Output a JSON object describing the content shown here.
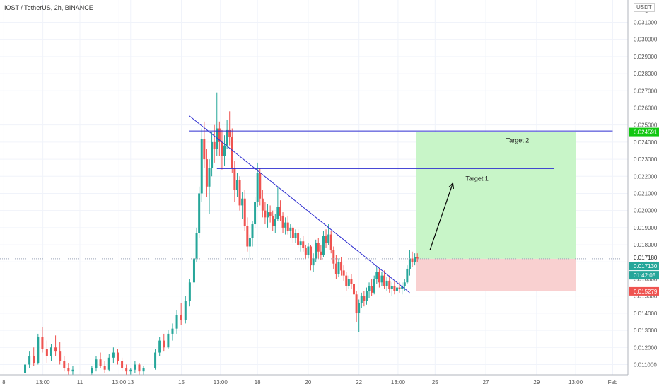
{
  "header": {
    "title": "IOST / TetherUS, 2h, BINANCE",
    "currency": "USDT"
  },
  "colors": {
    "up": "#26a69a",
    "down": "#ef5350",
    "trendline": "#2f2fd0",
    "target_zone": "#c8f5c8",
    "stop_zone": "#f9d0d0",
    "target_price_bg": "#12c712",
    "last_price_bg": "#26a69a",
    "stop_price_bg": "#ef5350"
  },
  "chart_data": {
    "type": "candlestick",
    "ylim": [
      0.0104,
      0.0323
    ],
    "y_ticks": [
      0.011,
      0.012,
      0.013,
      0.014,
      0.015,
      0.016,
      0.017,
      0.018,
      0.019,
      0.02,
      0.021,
      0.022,
      0.023,
      0.024,
      0.025,
      0.026,
      0.027,
      0.028,
      0.029,
      0.03,
      0.031
    ],
    "y_tick_labels": [
      "0.011000",
      "0.012000",
      "0.013000",
      "0.014000",
      "0.015000",
      "0.016000",
      "0.017000",
      "0.018000",
      "0.019000",
      "0.020000",
      "0.021000",
      "0.022000",
      "0.023000",
      "0.024000",
      "0.025000",
      "0.026000",
      "0.027000",
      "0.028000",
      "0.029000",
      "0.030000",
      "0.031000"
    ],
    "y_top_label": "0",
    "xlim": [
      7.85,
      32.6
    ],
    "x_ticks": [
      {
        "x": 8.0,
        "label": "8"
      },
      {
        "x": 9.54,
        "label": "13:00"
      },
      {
        "x": 11.0,
        "label": "11"
      },
      {
        "x": 12.54,
        "label": "13:00"
      },
      {
        "x": 13.0,
        "label": "13"
      },
      {
        "x": 15.0,
        "label": "15"
      },
      {
        "x": 16.54,
        "label": "13:00"
      },
      {
        "x": 18.0,
        "label": "18"
      },
      {
        "x": 20.0,
        "label": "20"
      },
      {
        "x": 22.0,
        "label": "22"
      },
      {
        "x": 23.54,
        "label": "13:00"
      },
      {
        "x": 25.0,
        "label": "25"
      },
      {
        "x": 27.0,
        "label": "27"
      },
      {
        "x": 29.0,
        "label": "29"
      },
      {
        "x": 30.54,
        "label": "13:00"
      },
      {
        "x": 32.0,
        "label": "Feb"
      }
    ],
    "ohlc": [
      [
        8.84,
        0.0105,
        0.0112,
        0.0104,
        0.011
      ],
      [
        9.01,
        0.011,
        0.0118,
        0.0108,
        0.0115
      ],
      [
        9.18,
        0.0115,
        0.012,
        0.0109,
        0.0111
      ],
      [
        9.35,
        0.0111,
        0.0128,
        0.011,
        0.0126
      ],
      [
        9.52,
        0.0126,
        0.0132,
        0.0117,
        0.0119
      ],
      [
        9.7,
        0.0119,
        0.0124,
        0.0111,
        0.0115
      ],
      [
        9.87,
        0.0115,
        0.0122,
        0.0112,
        0.012
      ],
      [
        10.04,
        0.012,
        0.0127,
        0.0115,
        0.0118
      ],
      [
        10.21,
        0.0118,
        0.0123,
        0.011,
        0.0112
      ],
      [
        10.38,
        0.0112,
        0.0115,
        0.0106,
        0.0108
      ],
      [
        10.55,
        0.0108,
        0.0111,
        0.0104,
        0.0106
      ],
      [
        10.72,
        0.0106,
        0.0109,
        0.0104,
        0.0107
      ],
      [
        11.47,
        0.0105,
        0.0109,
        0.0104,
        0.0108
      ],
      [
        11.64,
        0.0108,
        0.0115,
        0.0106,
        0.0113
      ],
      [
        11.81,
        0.0113,
        0.0117,
        0.0108,
        0.0109
      ],
      [
        11.98,
        0.0109,
        0.0112,
        0.0105,
        0.0107
      ],
      [
        12.15,
        0.0107,
        0.0116,
        0.0106,
        0.0114
      ],
      [
        12.32,
        0.0114,
        0.012,
        0.0111,
        0.0117
      ],
      [
        12.49,
        0.0117,
        0.0119,
        0.011,
        0.0112
      ],
      [
        12.66,
        0.0112,
        0.0114,
        0.0106,
        0.0108
      ],
      [
        12.83,
        0.0108,
        0.011,
        0.0104,
        0.0106
      ],
      [
        13.0,
        0.0106,
        0.0108,
        0.0104,
        0.0107
      ],
      [
        13.17,
        0.0107,
        0.0112,
        0.0105,
        0.011
      ],
      [
        13.34,
        0.011,
        0.0111,
        0.0104,
        0.0106
      ],
      [
        13.51,
        0.0106,
        0.0109,
        0.0104,
        0.0108
      ],
      [
        13.97,
        0.0108,
        0.0119,
        0.0107,
        0.0117
      ],
      [
        14.14,
        0.0117,
        0.0126,
        0.0115,
        0.0124
      ],
      [
        14.31,
        0.0124,
        0.0128,
        0.0118,
        0.012
      ],
      [
        14.48,
        0.012,
        0.013,
        0.0119,
        0.0128
      ],
      [
        14.65,
        0.0128,
        0.0134,
        0.0124,
        0.0131
      ],
      [
        14.82,
        0.0131,
        0.0142,
        0.0128,
        0.0139
      ],
      [
        14.99,
        0.0139,
        0.0146,
        0.0133,
        0.0136
      ],
      [
        15.16,
        0.0136,
        0.015,
        0.0134,
        0.0147
      ],
      [
        15.33,
        0.0147,
        0.016,
        0.0144,
        0.0158
      ],
      [
        15.5,
        0.0158,
        0.0175,
        0.0155,
        0.0172
      ],
      [
        15.6,
        0.0172,
        0.019,
        0.017,
        0.0187
      ],
      [
        15.7,
        0.0187,
        0.0214,
        0.0184,
        0.021
      ],
      [
        15.8,
        0.021,
        0.0248,
        0.0205,
        0.0242
      ],
      [
        15.9,
        0.0242,
        0.0252,
        0.0225,
        0.023
      ],
      [
        16.0,
        0.023,
        0.0236,
        0.0208,
        0.0214
      ],
      [
        16.1,
        0.0214,
        0.023,
        0.0198,
        0.0225
      ],
      [
        16.2,
        0.0225,
        0.0246,
        0.022,
        0.024
      ],
      [
        16.3,
        0.024,
        0.025,
        0.0228,
        0.0236
      ],
      [
        16.4,
        0.0236,
        0.0269,
        0.0232,
        0.0248
      ],
      [
        16.5,
        0.0248,
        0.0252,
        0.0232,
        0.024
      ],
      [
        16.6,
        0.024,
        0.0247,
        0.0224,
        0.0232
      ],
      [
        16.7,
        0.0232,
        0.0244,
        0.0226,
        0.0238
      ],
      [
        16.8,
        0.0238,
        0.0253,
        0.0236,
        0.0247
      ],
      [
        16.9,
        0.0247,
        0.0258,
        0.0238,
        0.0243
      ],
      [
        17.0,
        0.0243,
        0.0248,
        0.0222,
        0.0225
      ],
      [
        17.1,
        0.0225,
        0.0229,
        0.0205,
        0.0212
      ],
      [
        17.2,
        0.0212,
        0.0222,
        0.0208,
        0.0218
      ],
      [
        17.3,
        0.0218,
        0.022,
        0.02,
        0.0203
      ],
      [
        17.4,
        0.0203,
        0.0211,
        0.0195,
        0.0207
      ],
      [
        17.5,
        0.0207,
        0.0212,
        0.0188,
        0.0191
      ],
      [
        17.6,
        0.0191,
        0.0196,
        0.0176,
        0.0179
      ],
      [
        17.7,
        0.0179,
        0.0186,
        0.0172,
        0.0184
      ],
      [
        17.8,
        0.0184,
        0.0194,
        0.0179,
        0.0192
      ],
      [
        17.9,
        0.0192,
        0.0208,
        0.019,
        0.0205
      ],
      [
        18.0,
        0.0205,
        0.0228,
        0.0202,
        0.0222
      ],
      [
        18.1,
        0.0222,
        0.0225,
        0.0203,
        0.0207
      ],
      [
        18.2,
        0.0207,
        0.0212,
        0.0196,
        0.02
      ],
      [
        18.3,
        0.02,
        0.0205,
        0.0192,
        0.0196
      ],
      [
        18.4,
        0.0196,
        0.0204,
        0.019,
        0.0199
      ],
      [
        18.5,
        0.0199,
        0.0203,
        0.0193,
        0.0197
      ],
      [
        18.6,
        0.0197,
        0.02,
        0.0188,
        0.0191
      ],
      [
        18.7,
        0.0191,
        0.0198,
        0.0187,
        0.0195
      ],
      [
        18.8,
        0.0195,
        0.0214,
        0.0194,
        0.0202
      ],
      [
        18.9,
        0.0202,
        0.0206,
        0.0194,
        0.0197
      ],
      [
        19.0,
        0.0197,
        0.0199,
        0.0187,
        0.019
      ],
      [
        19.1,
        0.019,
        0.0196,
        0.0186,
        0.0193
      ],
      [
        19.2,
        0.0193,
        0.0197,
        0.0186,
        0.0188
      ],
      [
        19.3,
        0.0188,
        0.0192,
        0.0184,
        0.019
      ],
      [
        19.4,
        0.019,
        0.0191,
        0.0181,
        0.0184
      ],
      [
        19.5,
        0.0184,
        0.0189,
        0.0181,
        0.0187
      ],
      [
        19.6,
        0.0187,
        0.0189,
        0.0178,
        0.018
      ],
      [
        19.7,
        0.018,
        0.0184,
        0.0176,
        0.0182
      ],
      [
        19.8,
        0.0182,
        0.0185,
        0.0176,
        0.0178
      ],
      [
        19.9,
        0.0178,
        0.018,
        0.0172,
        0.0174
      ],
      [
        20.0,
        0.0174,
        0.0181,
        0.0172,
        0.0179
      ],
      [
        20.1,
        0.0179,
        0.018,
        0.0165,
        0.0168
      ],
      [
        20.2,
        0.0168,
        0.0175,
        0.0164,
        0.0172
      ],
      [
        20.3,
        0.0172,
        0.0183,
        0.017,
        0.0181
      ],
      [
        20.4,
        0.0181,
        0.0184,
        0.0172,
        0.0176
      ],
      [
        20.5,
        0.0176,
        0.018,
        0.0171,
        0.0174
      ],
      [
        20.6,
        0.0174,
        0.0188,
        0.0173,
        0.0185
      ],
      [
        20.7,
        0.0185,
        0.0189,
        0.0178,
        0.0181
      ],
      [
        20.8,
        0.0181,
        0.0192,
        0.018,
        0.0186
      ],
      [
        20.9,
        0.0186,
        0.0188,
        0.0175,
        0.0177
      ],
      [
        21.0,
        0.0177,
        0.0179,
        0.0166,
        0.0169
      ],
      [
        21.1,
        0.0169,
        0.0174,
        0.016,
        0.0163
      ],
      [
        21.2,
        0.0163,
        0.0172,
        0.0161,
        0.017
      ],
      [
        21.3,
        0.017,
        0.0173,
        0.0162,
        0.0165
      ],
      [
        21.4,
        0.0165,
        0.0168,
        0.0159,
        0.0162
      ],
      [
        21.5,
        0.0162,
        0.0164,
        0.0153,
        0.0156
      ],
      [
        21.6,
        0.0156,
        0.0162,
        0.0154,
        0.016
      ],
      [
        21.7,
        0.016,
        0.0163,
        0.0154,
        0.0157
      ],
      [
        21.8,
        0.0157,
        0.0159,
        0.0148,
        0.0151
      ],
      [
        21.9,
        0.0151,
        0.0153,
        0.0135,
        0.014
      ],
      [
        22.0,
        0.014,
        0.0148,
        0.0129,
        0.0146
      ],
      [
        22.1,
        0.0146,
        0.0152,
        0.0143,
        0.015
      ],
      [
        22.2,
        0.015,
        0.0153,
        0.0144,
        0.0147
      ],
      [
        22.3,
        0.0147,
        0.0155,
        0.0145,
        0.0153
      ],
      [
        22.4,
        0.0153,
        0.0158,
        0.0149,
        0.0156
      ],
      [
        22.5,
        0.0156,
        0.016,
        0.015,
        0.0152
      ],
      [
        22.6,
        0.0152,
        0.0162,
        0.0151,
        0.016
      ],
      [
        22.7,
        0.016,
        0.0167,
        0.0157,
        0.0164
      ],
      [
        22.8,
        0.0164,
        0.0166,
        0.0155,
        0.0158
      ],
      [
        22.9,
        0.0158,
        0.0164,
        0.0156,
        0.0162
      ],
      [
        23.0,
        0.0162,
        0.0165,
        0.0154,
        0.0156
      ],
      [
        23.1,
        0.0156,
        0.0161,
        0.0153,
        0.0159
      ],
      [
        23.2,
        0.0159,
        0.0162,
        0.0152,
        0.0154
      ],
      [
        23.3,
        0.0154,
        0.0158,
        0.015,
        0.0156
      ],
      [
        23.4,
        0.0156,
        0.0159,
        0.0151,
        0.0153
      ],
      [
        23.5,
        0.0153,
        0.0157,
        0.015,
        0.0155
      ],
      [
        23.6,
        0.0155,
        0.0158,
        0.0152,
        0.0154
      ],
      [
        23.7,
        0.0154,
        0.0158,
        0.0151,
        0.0156
      ],
      [
        23.8,
        0.0156,
        0.016,
        0.0153,
        0.0158
      ],
      [
        23.9,
        0.0158,
        0.0168,
        0.0157,
        0.0166
      ],
      [
        24.0,
        0.0166,
        0.0177,
        0.0162,
        0.0172
      ],
      [
        24.1,
        0.0172,
        0.0176,
        0.0167,
        0.017
      ],
      [
        24.2,
        0.017,
        0.0175,
        0.0168,
        0.0173
      ],
      [
        24.3,
        0.0173,
        0.0175,
        0.017,
        0.0172
      ]
    ],
    "trendline": {
      "from": [
        15.3,
        0.02555
      ],
      "to": [
        24.0,
        0.0152
      ]
    },
    "horizontal_lines": [
      {
        "from_x": 15.3,
        "to_x": 32.0,
        "y": 0.02465
      },
      {
        "from_x": 16.4,
        "to_x": 29.7,
        "y": 0.02245
      }
    ],
    "zones": {
      "x_from": 24.25,
      "x_to": 30.55,
      "entry": 0.01718,
      "target": 0.02459,
      "stop": 0.01528
    },
    "annotations": [
      {
        "text": "Target 2",
        "x": 27.8,
        "y": 0.02398
      },
      {
        "text": "Target 1",
        "x": 26.2,
        "y": 0.02175
      }
    ],
    "arrow": {
      "from": [
        24.8,
        0.0177
      ],
      "to": [
        25.7,
        0.0216
      ]
    },
    "price_labels": [
      {
        "text": "0.024591",
        "y": 0.02459,
        "kind": "target"
      },
      {
        "text": "0.017180",
        "y": 0.01718,
        "kind": "plain"
      },
      {
        "text": "0.017130",
        "y": 0.01713,
        "kind": "last"
      },
      {
        "text": "01:42:05",
        "y": 0.01713,
        "kind": "countdown"
      },
      {
        "text": "0.015279",
        "y": 0.01528,
        "kind": "stop"
      }
    ]
  }
}
